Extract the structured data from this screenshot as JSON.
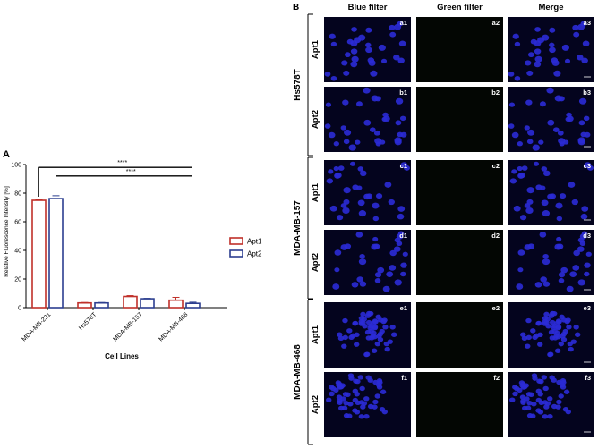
{
  "panel_a": {
    "letter": "A",
    "chart_data": {
      "type": "bar",
      "categories": [
        "MDA-MB-231",
        "Hs578T",
        "MDA-MB-157",
        "MDA-MB-468"
      ],
      "series": [
        {
          "name": "Apt1",
          "color": "#c0302a",
          "values": [
            75,
            3.3,
            7.8,
            5.2
          ],
          "errors": [
            0.6,
            0.3,
            0.6,
            2.0
          ]
        },
        {
          "name": "Apt2",
          "color": "#2c3e8f",
          "values": [
            76.2,
            3.3,
            6.2,
            3.0
          ],
          "errors": [
            2.0,
            0.3,
            0.3,
            0.8
          ]
        }
      ],
      "xlabel": "Cell Lines",
      "ylabel": "Relative Fluorescence Intensity [%]",
      "ylim": [
        0,
        100
      ],
      "yticks": [
        0,
        20,
        40,
        60,
        80,
        100
      ],
      "legend_position": "right",
      "significance": [
        {
          "label": "****",
          "from": "MDA-MB-231 Apt1",
          "to": "MDA-MB-468"
        },
        {
          "label": "****",
          "from": "MDA-MB-231 Apt2",
          "to": "MDA-MB-468"
        }
      ]
    }
  },
  "panel_b": {
    "letter": "B",
    "columns": [
      "Blue filter",
      "Green filter",
      "Merge"
    ],
    "groups": [
      {
        "cell_line": "Hs578T",
        "rows": [
          {
            "aptamer": "Apt1",
            "labels": [
              "a1",
              "a2",
              "a3"
            ]
          },
          {
            "aptamer": "Apt2",
            "labels": [
              "b1",
              "b2",
              "b3"
            ]
          }
        ]
      },
      {
        "cell_line": "MDA-MB-157",
        "rows": [
          {
            "aptamer": "Apt1",
            "labels": [
              "c1",
              "c2",
              "c3"
            ]
          },
          {
            "aptamer": "Apt2",
            "labels": [
              "d1",
              "d2",
              "d3"
            ]
          }
        ]
      },
      {
        "cell_line": "MDA-MB-468",
        "rows": [
          {
            "aptamer": "Apt1",
            "labels": [
              "e1",
              "e2",
              "e3"
            ]
          },
          {
            "aptamer": "Apt2",
            "labels": [
              "f1",
              "f2",
              "f3"
            ]
          }
        ]
      }
    ],
    "colors": {
      "image_bg": "#04041e",
      "green_bg": "#030603",
      "nuclei": "#2b2bd6"
    }
  }
}
